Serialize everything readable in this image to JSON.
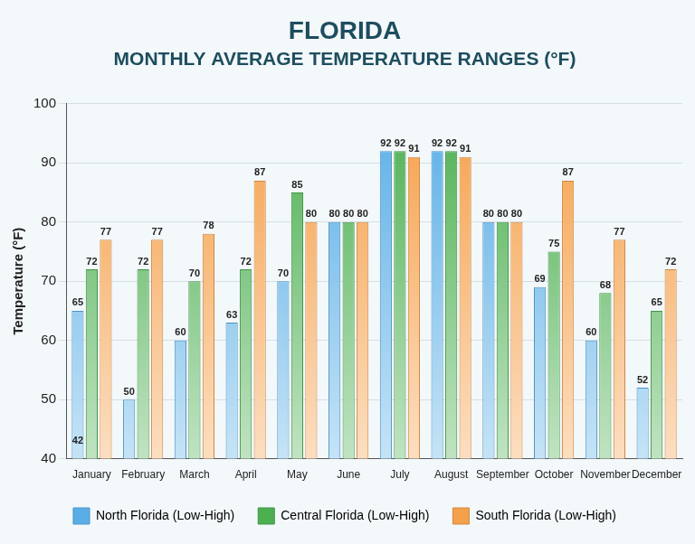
{
  "chart_data": {
    "type": "bar",
    "title": "FLORIDA",
    "subtitle": "MONTHLY AVERAGE TEMPERATURE RANGES (°F)",
    "y_label": "Temperature (°F)",
    "categories": [
      "January",
      "February",
      "March",
      "April",
      "May",
      "June",
      "July",
      "August",
      "September",
      "October",
      "November",
      "December"
    ],
    "series": [
      {
        "name": "North Florida (Low-High)",
        "color": "#5aaee6",
        "values": [
          65,
          50,
          60,
          63,
          70,
          80,
          92,
          92,
          80,
          69,
          60,
          52
        ],
        "low_values": [
          42,
          null,
          null,
          null,
          null,
          null,
          null,
          null,
          null,
          null,
          null,
          null
        ]
      },
      {
        "name": "Central Florida (Low-High)",
        "color": "#4caf50",
        "values": [
          72,
          72,
          70,
          72,
          85,
          80,
          92,
          92,
          80,
          75,
          68,
          65
        ]
      },
      {
        "name": "South Florida (Low-High)",
        "color": "#f5a04a",
        "values": [
          77,
          77,
          78,
          87,
          80,
          80,
          91,
          91,
          80,
          87,
          77,
          72
        ]
      }
    ],
    "ylim": [
      40,
      100
    ],
    "yticks": [
      40,
      50,
      60,
      70,
      80,
      90,
      100
    ],
    "grid": true,
    "data_labels": true,
    "legend": "bottom"
  }
}
